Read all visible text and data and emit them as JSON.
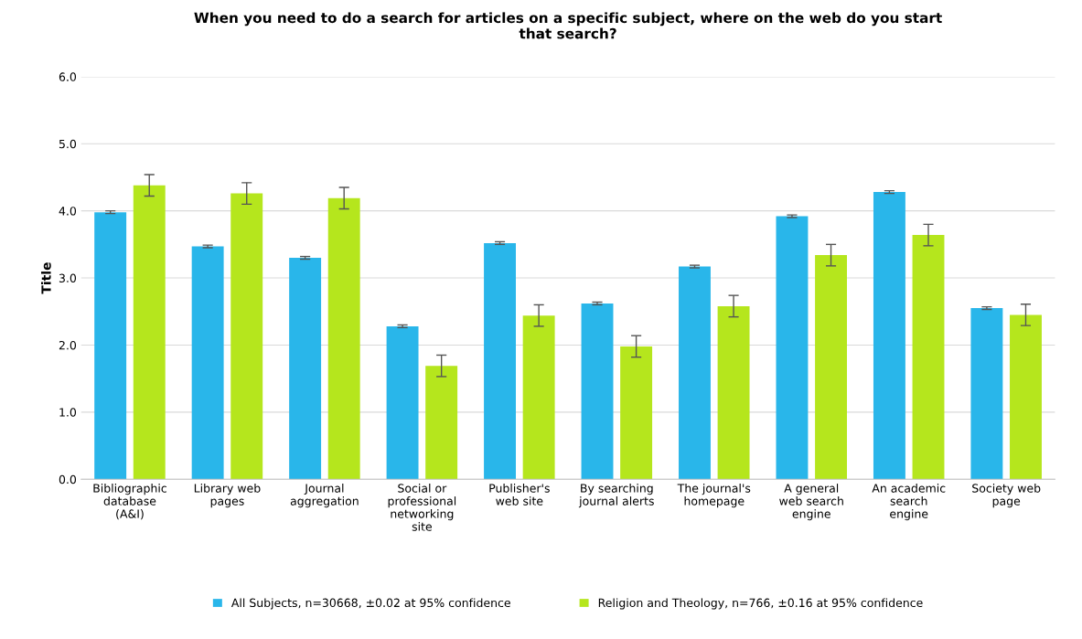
{
  "chart_data": {
    "type": "bar",
    "title": "When you need to do a search for articles on a specific subject, where on the web do you start\nthat search?",
    "ylabel": "Title",
    "categories": [
      "Bibliographic\ndatabase\n(A&I)",
      "Library web\npages",
      "Journal\naggregation",
      "Social or\nprofessional\nnetworking\nsite",
      "Publisher's\nweb site",
      "By searching\njournal alerts",
      "The journal's\nhomepage",
      "A general\nweb search\nengine",
      "An academic\nsearch\nengine",
      "Society web\npage"
    ],
    "series": [
      {
        "name": "All Subjects, n=30668, ±0.02 at 95% confidence",
        "color": "#29b6ea",
        "values": [
          3.98,
          3.47,
          3.3,
          2.28,
          3.52,
          2.62,
          3.17,
          3.92,
          4.28,
          2.55
        ],
        "errors": [
          0.02,
          0.02,
          0.02,
          0.02,
          0.02,
          0.02,
          0.02,
          0.02,
          0.02,
          0.02
        ]
      },
      {
        "name": "Religion and Theology, n=766, ±0.16 at 95% confidence",
        "color": "#b5e61d",
        "values": [
          4.38,
          4.26,
          4.19,
          1.69,
          2.44,
          1.98,
          2.58,
          3.34,
          3.64,
          2.45
        ],
        "errors": [
          0.16,
          0.16,
          0.16,
          0.16,
          0.16,
          0.16,
          0.16,
          0.16,
          0.16,
          0.16
        ]
      }
    ],
    "ylim": [
      0,
      6
    ],
    "yticks": [
      {
        "value": 0,
        "label": "0.0"
      },
      {
        "value": 1,
        "label": "1.0"
      },
      {
        "value": 2,
        "label": "2.0"
      },
      {
        "value": 3,
        "label": "3.0"
      },
      {
        "value": 4,
        "label": "4.0"
      },
      {
        "value": 5,
        "label": "5.0"
      },
      {
        "value": 6,
        "label": "6.0"
      }
    ],
    "grid": "y",
    "legend": "bottom"
  }
}
